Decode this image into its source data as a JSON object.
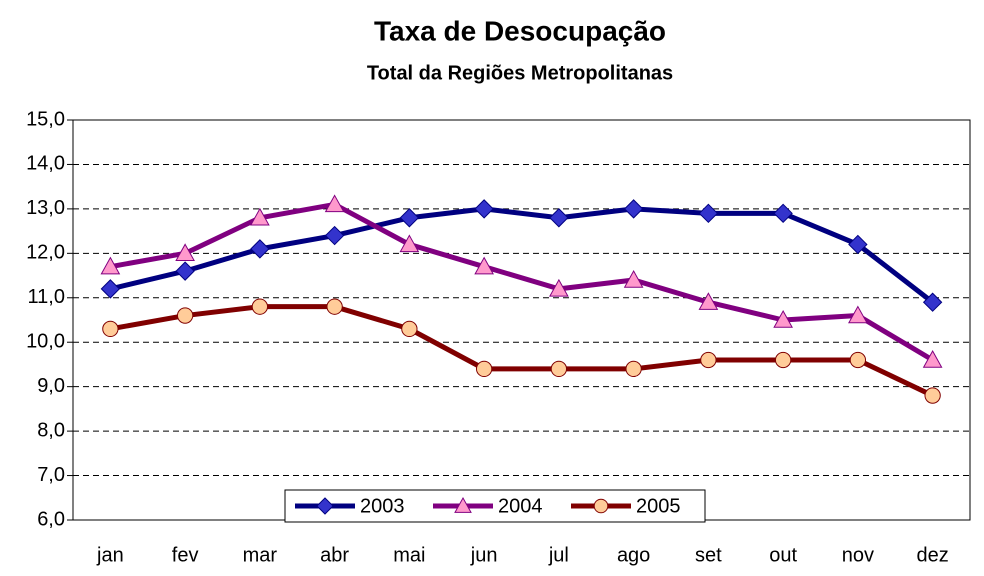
{
  "chart_data": {
    "type": "line",
    "title": "Taxa de Desocupação",
    "subtitle": "Total da Regiões Metropolitanas",
    "categories": [
      "jan",
      "fev",
      "mar",
      "abr",
      "mai",
      "jun",
      "jul",
      "ago",
      "set",
      "out",
      "nov",
      "dez"
    ],
    "series": [
      {
        "name": "2003",
        "color": "#000080",
        "marker": "diamond",
        "marker_color": "#3333cc",
        "values": [
          11.2,
          11.6,
          12.1,
          12.4,
          12.8,
          13.0,
          12.8,
          13.0,
          12.9,
          12.9,
          12.2,
          10.9
        ]
      },
      {
        "name": "2004",
        "color": "#800080",
        "marker": "triangle",
        "marker_color": "#ff99cc",
        "values": [
          11.7,
          12.0,
          12.8,
          13.1,
          12.2,
          11.7,
          11.2,
          11.4,
          10.9,
          10.5,
          10.6,
          9.6
        ]
      },
      {
        "name": "2005",
        "color": "#800000",
        "marker": "circle",
        "marker_color": "#ffcc99",
        "values": [
          10.3,
          10.6,
          10.8,
          10.8,
          10.3,
          9.4,
          9.4,
          9.4,
          9.6,
          9.6,
          9.6,
          8.8
        ]
      }
    ],
    "ylim": [
      6,
      15
    ],
    "yticks": [
      {
        "value": 6,
        "label": "6,0"
      },
      {
        "value": 7,
        "label": "7,0"
      },
      {
        "value": 8,
        "label": "8,0"
      },
      {
        "value": 9,
        "label": "9,0"
      },
      {
        "value": 10,
        "label": "10,0"
      },
      {
        "value": 11,
        "label": "11,0"
      },
      {
        "value": 12,
        "label": "12,0"
      },
      {
        "value": 13,
        "label": "13,0"
      },
      {
        "value": 14,
        "label": "14,0"
      },
      {
        "value": 15,
        "label": "15,0"
      }
    ],
    "grid": true,
    "legend": "bottom-center"
  }
}
